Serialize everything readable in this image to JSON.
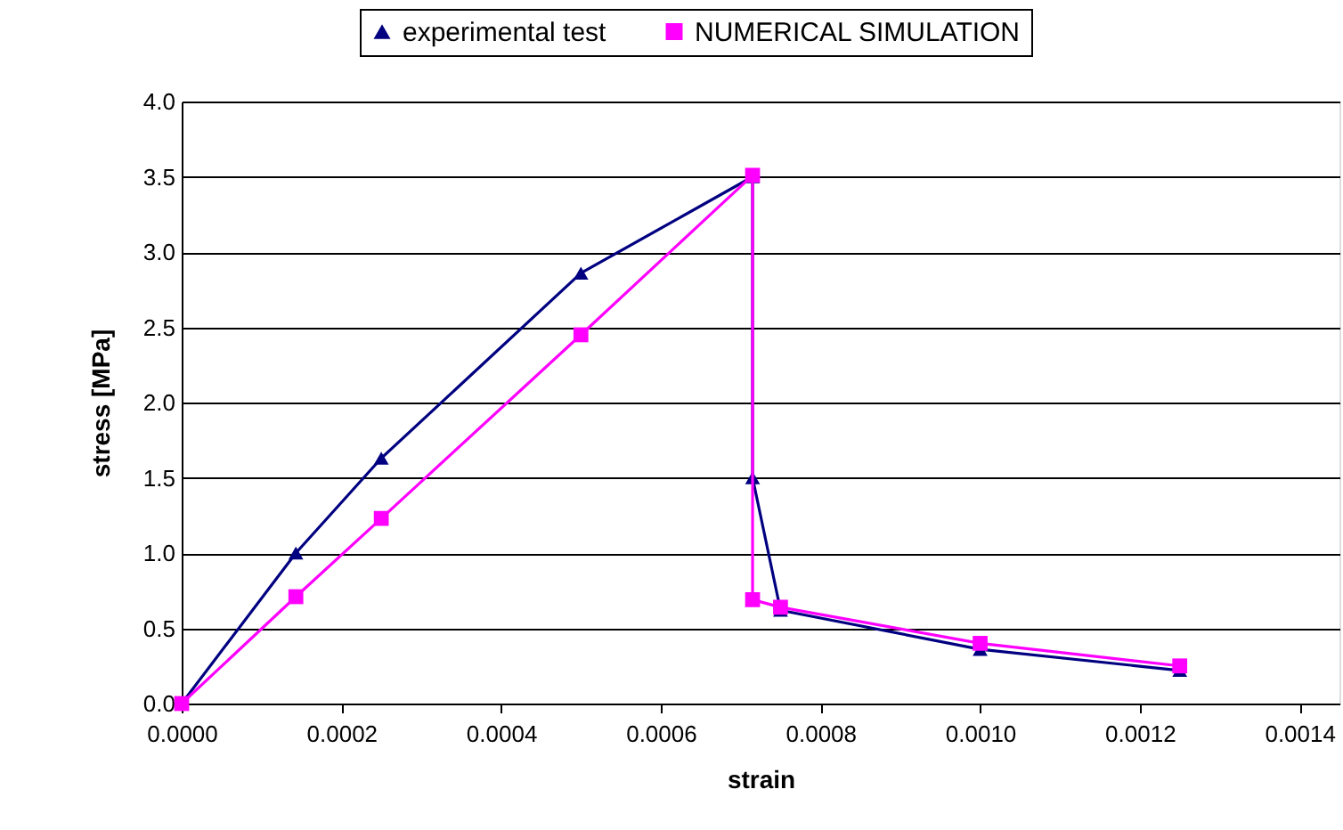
{
  "chart_data": {
    "type": "line",
    "xlabel": "strain",
    "ylabel": "stress [MPa]",
    "series": [
      {
        "name": "experimental test",
        "color": "#000080",
        "marker": "triangle",
        "x": [
          0,
          0.000143,
          0.00025,
          0.0005,
          0.000715,
          0.000715,
          0.00075,
          0.001,
          0.00125
        ],
        "values": [
          0,
          1.0,
          1.63,
          2.86,
          3.5,
          1.5,
          0.62,
          0.36,
          0.22
        ]
      },
      {
        "name": "NUMERICAL SIMULATION",
        "color": "#ff00ff",
        "marker": "square",
        "x": [
          0,
          0.000143,
          0.00025,
          0.0005,
          0.000715,
          0.000715,
          0.00075,
          0.001,
          0.00125
        ],
        "values": [
          0,
          0.71,
          1.23,
          2.45,
          3.51,
          0.69,
          0.64,
          0.4,
          0.25
        ]
      }
    ],
    "xlim": [
      0,
      0.00145
    ],
    "xticks": [
      {
        "value": 0,
        "label": "0.0000"
      },
      {
        "value": 0.0002,
        "label": "0.0002"
      },
      {
        "value": 0.0004,
        "label": "0.0004"
      },
      {
        "value": 0.0006,
        "label": "0.0006"
      },
      {
        "value": 0.0008,
        "label": "0.0008"
      },
      {
        "value": 0.001,
        "label": "0.0010"
      },
      {
        "value": 0.0012,
        "label": "0.0012"
      },
      {
        "value": 0.0014,
        "label": "0.0014"
      }
    ],
    "ylim": [
      0,
      4.0
    ],
    "yticks": [
      {
        "value": 0,
        "label": "0.0"
      },
      {
        "value": 0.5,
        "label": "0.5"
      },
      {
        "value": 1,
        "label": "1.0"
      },
      {
        "value": 1.5,
        "label": "1.5"
      },
      {
        "value": 2,
        "label": "2.0"
      },
      {
        "value": 2.5,
        "label": "2.5"
      },
      {
        "value": 3,
        "label": "3.0"
      },
      {
        "value": 3.5,
        "label": "3.5"
      },
      {
        "value": 4,
        "label": "4.0"
      }
    ],
    "grid": "y",
    "legend": "top"
  }
}
